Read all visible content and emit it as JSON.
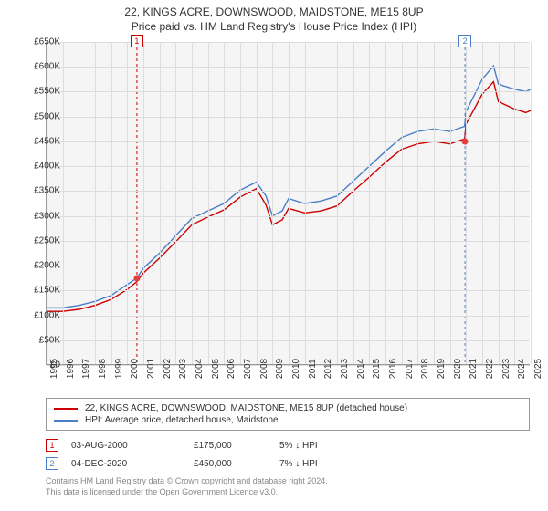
{
  "title": {
    "address": "22, KINGS ACRE, DOWNSWOOD, MAIDSTONE, ME15 8UP",
    "subtitle": "Price paid vs. HM Land Registry's House Price Index (HPI)"
  },
  "colors": {
    "series_red": "#cc0000",
    "series_blue": "#4a7ec8",
    "plot_bg": "#f5f5f5",
    "grid": "#dddddd",
    "axis": "#999999",
    "text": "#333333",
    "footer": "#888888",
    "marker_dot": "#e04040"
  },
  "chart": {
    "type": "line",
    "x_years": [
      1995,
      1996,
      1997,
      1998,
      1999,
      2000,
      2001,
      2002,
      2003,
      2004,
      2005,
      2006,
      2007,
      2008,
      2009,
      2010,
      2011,
      2012,
      2013,
      2014,
      2015,
      2016,
      2017,
      2018,
      2019,
      2020,
      2021,
      2022,
      2023,
      2024,
      2025
    ],
    "ylim": [
      0,
      650
    ],
    "ytick_step": 50,
    "y_prefix": "£",
    "y_suffix": "K",
    "line_width": 1.4,
    "series": [
      {
        "key": "hpi_blue",
        "color_key": "series_blue",
        "points": [
          [
            1995,
            115
          ],
          [
            1996,
            115
          ],
          [
            1997,
            120
          ],
          [
            1998,
            128
          ],
          [
            1999,
            140
          ],
          [
            2000,
            162
          ],
          [
            2000.6,
            175
          ],
          [
            2001,
            195
          ],
          [
            2002,
            225
          ],
          [
            2003,
            260
          ],
          [
            2004,
            295
          ],
          [
            2005,
            310
          ],
          [
            2006,
            325
          ],
          [
            2007,
            352
          ],
          [
            2008,
            368
          ],
          [
            2008.6,
            340
          ],
          [
            2009,
            300
          ],
          [
            2009.6,
            310
          ],
          [
            2010,
            335
          ],
          [
            2011,
            325
          ],
          [
            2012,
            330
          ],
          [
            2013,
            340
          ],
          [
            2014,
            370
          ],
          [
            2015,
            400
          ],
          [
            2016,
            430
          ],
          [
            2017,
            458
          ],
          [
            2018,
            470
          ],
          [
            2019,
            475
          ],
          [
            2020,
            470
          ],
          [
            2020.9,
            480
          ],
          [
            2021,
            510
          ],
          [
            2022,
            575
          ],
          [
            2022.7,
            602
          ],
          [
            2023,
            565
          ],
          [
            2024,
            555
          ],
          [
            2024.7,
            550
          ],
          [
            2025,
            555
          ]
        ]
      },
      {
        "key": "price_red",
        "color_key": "series_red",
        "points": [
          [
            1995,
            108
          ],
          [
            1996,
            108
          ],
          [
            1997,
            112
          ],
          [
            1998,
            120
          ],
          [
            1999,
            132
          ],
          [
            2000,
            152
          ],
          [
            2000.6,
            168
          ],
          [
            2001,
            185
          ],
          [
            2002,
            215
          ],
          [
            2003,
            248
          ],
          [
            2004,
            282
          ],
          [
            2005,
            298
          ],
          [
            2006,
            312
          ],
          [
            2007,
            338
          ],
          [
            2008,
            355
          ],
          [
            2008.6,
            322
          ],
          [
            2009,
            282
          ],
          [
            2009.6,
            292
          ],
          [
            2010,
            315
          ],
          [
            2011,
            306
          ],
          [
            2012,
            310
          ],
          [
            2013,
            320
          ],
          [
            2014,
            350
          ],
          [
            2015,
            378
          ],
          [
            2016,
            408
          ],
          [
            2017,
            434
          ],
          [
            2018,
            445
          ],
          [
            2019,
            450
          ],
          [
            2020,
            445
          ],
          [
            2020.9,
            455
          ],
          [
            2021,
            485
          ],
          [
            2022,
            545
          ],
          [
            2022.7,
            570
          ],
          [
            2023,
            530
          ],
          [
            2024,
            515
          ],
          [
            2024.7,
            508
          ],
          [
            2025,
            512
          ]
        ]
      }
    ],
    "markers": [
      {
        "n": 1,
        "year": 2000.6,
        "value": 175,
        "color_key": "series_red"
      },
      {
        "n": 2,
        "year": 2020.93,
        "value": 450,
        "color_key": "series_blue"
      }
    ]
  },
  "legend": {
    "items": [
      {
        "color_key": "series_red",
        "label": "22, KINGS ACRE, DOWNSWOOD, MAIDSTONE, ME15 8UP (detached house)"
      },
      {
        "color_key": "series_blue",
        "label": "HPI: Average price, detached house, Maidstone"
      }
    ]
  },
  "sales": [
    {
      "n": 1,
      "color_key": "series_red",
      "date": "03-AUG-2000",
      "price": "£175,000",
      "pct": "5% ↓ HPI"
    },
    {
      "n": 2,
      "color_key": "series_blue",
      "date": "04-DEC-2020",
      "price": "£450,000",
      "pct": "7% ↓ HPI"
    }
  ],
  "footer": {
    "line1": "Contains HM Land Registry data © Crown copyright and database right 2024.",
    "line2": "This data is licensed under the Open Government Licence v3.0."
  }
}
